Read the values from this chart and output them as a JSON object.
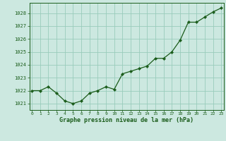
{
  "x": [
    0,
    1,
    2,
    3,
    4,
    5,
    6,
    7,
    8,
    9,
    10,
    11,
    12,
    13,
    14,
    15,
    16,
    17,
    18,
    19,
    20,
    21,
    22,
    23
  ],
  "y": [
    1022.0,
    1022.0,
    1022.3,
    1021.8,
    1021.2,
    1021.0,
    1021.2,
    1021.8,
    1022.0,
    1022.3,
    1022.1,
    1023.3,
    1023.5,
    1023.7,
    1023.9,
    1024.5,
    1024.5,
    1025.0,
    1025.9,
    1027.3,
    1027.3,
    1027.7,
    1028.1,
    1028.4
  ],
  "xlim": [
    -0.3,
    23.3
  ],
  "ylim": [
    1020.5,
    1028.8
  ],
  "yticks": [
    1021,
    1022,
    1023,
    1024,
    1025,
    1026,
    1027,
    1028
  ],
  "xticks": [
    0,
    1,
    2,
    3,
    4,
    5,
    6,
    7,
    8,
    9,
    10,
    11,
    12,
    13,
    14,
    15,
    16,
    17,
    18,
    19,
    20,
    21,
    22,
    23
  ],
  "line_color": "#1a5c1a",
  "marker_color": "#1a5c1a",
  "bg_color": "#cce8e0",
  "grid_color": "#99ccbb",
  "xlabel": "Graphe pression niveau de la mer (hPa)",
  "xlabel_color": "#1a5c1a",
  "tick_color": "#1a5c1a"
}
